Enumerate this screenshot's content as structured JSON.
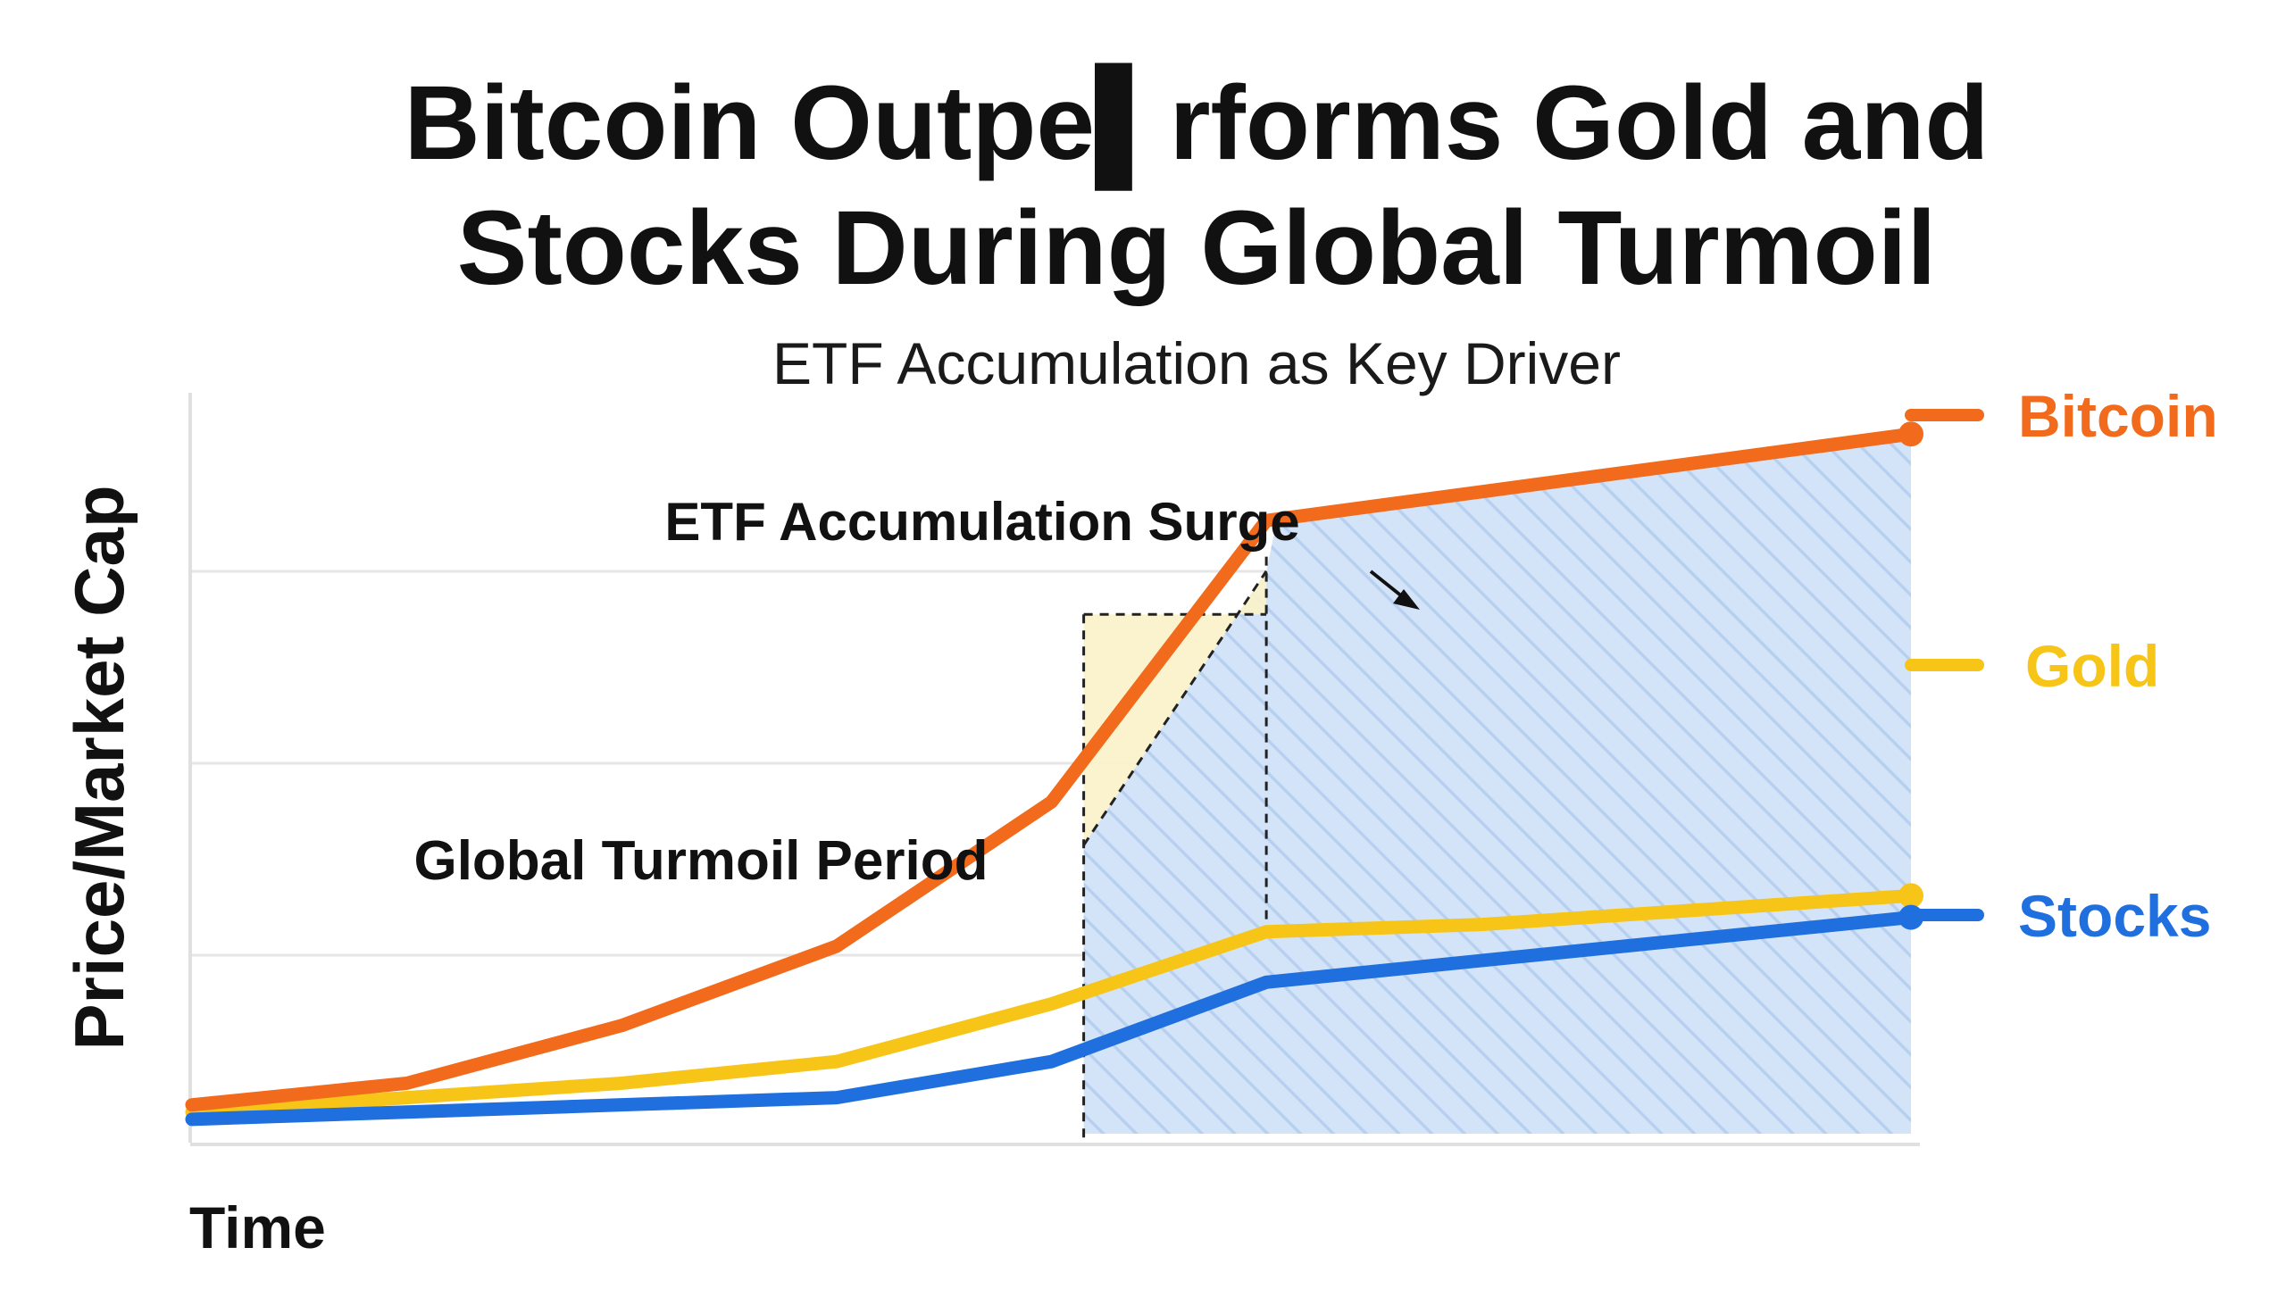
{
  "chart_data": {
    "type": "line",
    "title_line1": "Bitcoin Outpe▌rforms Gold and",
    "title_line2": "Stocks During Global Turmoil",
    "subtitle": "ETF Accumulation as Key Driver",
    "xlabel": "Time",
    "ylabel": "Price/Market Cap",
    "x": [
      0,
      1,
      2,
      3,
      4,
      5,
      6,
      7,
      8
    ],
    "xlim": [
      0,
      8
    ],
    "ylim": [
      0,
      100
    ],
    "grid": true,
    "legend_position": "right",
    "series": [
      {
        "name": "Bitcoin",
        "color": "#F26A1B",
        "values": [
          4,
          7,
          15,
          26,
          46,
          85,
          89,
          93,
          97
        ]
      },
      {
        "name": "Gold",
        "color": "#F6C518",
        "values": [
          3,
          5,
          7,
          10,
          18,
          28,
          29,
          31,
          33
        ]
      },
      {
        "name": "Stocks",
        "color": "#1F6FDF",
        "values": [
          2,
          3,
          4,
          5,
          10,
          21,
          24,
          27,
          30
        ]
      }
    ],
    "shaded_regions": [
      {
        "label": "Global Turmoil Period",
        "x_start": 5,
        "x_end": 8,
        "color": "#CFE1F7",
        "pattern": "diagonal-hatch"
      },
      {
        "label": "ETF Accumulation Surge",
        "x_start": 4.15,
        "x_end": 5,
        "color": "#FBF2C9",
        "pattern": "none"
      }
    ]
  }
}
